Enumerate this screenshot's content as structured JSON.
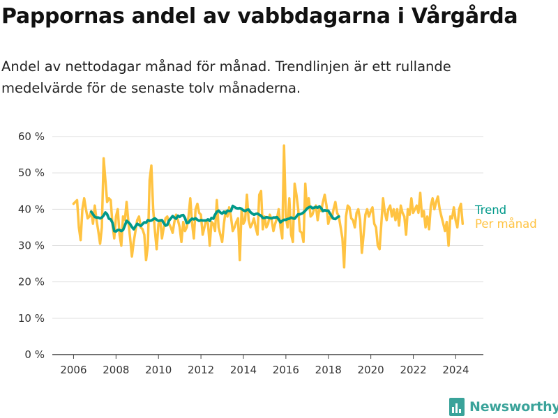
{
  "title": "Pappornas andel av vabbdagarna i Vårgårda",
  "subtitle": "Andel av nettodagar månad för månad. Trendlinjen är ett rullande medelvärde för de senaste tolv månaderna.",
  "brand": {
    "name": "Newsworthy",
    "icon": "newsworthy-logo-icon"
  },
  "chart_data": {
    "type": "line",
    "title": "Pappornas andel av vabbdagarna i Vårgårda",
    "xlabel": "",
    "ylabel": "",
    "x_ticks": [
      "2006",
      "2008",
      "2010",
      "2012",
      "2014",
      "2016",
      "2018",
      "2020",
      "2022",
      "2024"
    ],
    "y_ticks": [
      "0 %",
      "10 %",
      "20 %",
      "30 %",
      "40 %",
      "50 %",
      "60 %"
    ],
    "xlim": [
      2005.0,
      2025.3
    ],
    "ylim": [
      0,
      60
    ],
    "grid": "horizontal",
    "legend": "right-end-labels",
    "colors": {
      "trend": "#00998a",
      "monthly": "#ffc342"
    },
    "series": [
      {
        "name": "Trend",
        "start": 2006.833,
        "step": 0.0833,
        "values": [
          39.3,
          38.6,
          37.9,
          37.7,
          37.7,
          37.5,
          37.7,
          38.3,
          39.1,
          38.6,
          37.4,
          37.2,
          36.3,
          34.0,
          33.9,
          34.3,
          34.3,
          34.0,
          34.3,
          35.5,
          36.8,
          36.4,
          35.9,
          35.1,
          34.5,
          35.3,
          36.0,
          35.7,
          35.4,
          35.9,
          36.4,
          36.3,
          37.0,
          36.8,
          36.9,
          37.2,
          37.5,
          37.1,
          36.8,
          36.9,
          37.0,
          36.2,
          35.5,
          35.7,
          36.9,
          37.5,
          38.1,
          37.7,
          37.4,
          38.2,
          37.9,
          38.3,
          38.4,
          37.6,
          36.2,
          36.3,
          37.0,
          37.4,
          37.2,
          37.5,
          37.1,
          36.8,
          37.0,
          36.9,
          36.9,
          36.9,
          37.2,
          36.8,
          37.6,
          37.4,
          38.5,
          39.3,
          39.6,
          39.1,
          38.8,
          39.3,
          38.9,
          39.6,
          39.5,
          39.5,
          40.9,
          40.6,
          40.3,
          40.2,
          40.3,
          40.1,
          39.7,
          39.5,
          39.8,
          39.9,
          39.2,
          38.8,
          38.5,
          38.7,
          38.8,
          38.5,
          38.2,
          37.6,
          37.6,
          37.8,
          37.7,
          37.6,
          37.5,
          37.7,
          37.7,
          37.8,
          37.2,
          36.4,
          36.8,
          37.1,
          37.1,
          37.3,
          37.4,
          37.7,
          37.5,
          37.4,
          38.0,
          38.6,
          38.6,
          38.8,
          39.1,
          39.6,
          40.2,
          40.5,
          40.7,
          40.3,
          40.4,
          40.6,
          40.4,
          40.8,
          40.3,
          39.5,
          39.7,
          39.6,
          39.6,
          38.8,
          38.0,
          37.4,
          37.3,
          37.7,
          38.0
        ]
      },
      {
        "name": "Per månad",
        "start": 2006.0,
        "step": 0.0833,
        "values": [
          41.5,
          42.0,
          42.5,
          35.0,
          31.5,
          40.0,
          43.0,
          40.0,
          37.5,
          38.0,
          39.5,
          36.0,
          41.0,
          37.0,
          34.0,
          30.5,
          35.0,
          54.0,
          48.0,
          42.0,
          43.0,
          42.5,
          36.0,
          32.0,
          38.0,
          40.0,
          33.0,
          30.0,
          38.0,
          37.0,
          42.0,
          36.5,
          32.0,
          27.0,
          31.0,
          34.0,
          37.0,
          38.0,
          35.0,
          34.5,
          33.0,
          26.0,
          30.0,
          48.0,
          52.0,
          40.0,
          34.0,
          29.0,
          36.0,
          37.0,
          32.0,
          35.0,
          37.5,
          38.0,
          36.0,
          35.0,
          33.5,
          36.5,
          38.5,
          37.0,
          35.0,
          31.0,
          36.5,
          34.0,
          35.0,
          38.0,
          43.0,
          36.0,
          32.0,
          40.0,
          41.5,
          39.0,
          38.5,
          33.0,
          35.0,
          37.0,
          36.0,
          30.0,
          36.5,
          36.0,
          34.0,
          42.5,
          35.0,
          33.0,
          31.0,
          36.0,
          39.5,
          38.0,
          40.5,
          38.0,
          34.0,
          35.0,
          36.5,
          37.5,
          26.0,
          40.0,
          36.0,
          37.0,
          44.0,
          37.0,
          35.0,
          36.0,
          37.5,
          35.0,
          33.0,
          44.0,
          45.0,
          34.5,
          38.0,
          35.0,
          36.0,
          38.5,
          37.0,
          34.0,
          36.0,
          37.5,
          40.0,
          35.0,
          32.0,
          57.5,
          38.0,
          35.0,
          43.0,
          33.0,
          31.0,
          47.0,
          44.0,
          40.0,
          34.0,
          33.5,
          31.0,
          47.0,
          40.0,
          43.0,
          38.0,
          38.5,
          40.0,
          41.0,
          37.0,
          40.0,
          39.5,
          42.0,
          44.0,
          41.0,
          36.0,
          38.0,
          37.5,
          40.0,
          42.0,
          39.0,
          38.0,
          35.0,
          32.0,
          24.0,
          38.0,
          41.0,
          40.5,
          37.5,
          37.0,
          35.0,
          39.0,
          40.0,
          37.0,
          28.0,
          33.0,
          38.5,
          40.0,
          38.0,
          39.5,
          40.5,
          36.0,
          35.0,
          30.0,
          29.0,
          36.0,
          43.0,
          39.0,
          37.0,
          40.0,
          41.0,
          38.0,
          40.0,
          37.0,
          40.0,
          35.5,
          41.0,
          39.0,
          38.0,
          33.0,
          40.0,
          38.5,
          43.0,
          39.0,
          40.0,
          41.0,
          39.0,
          44.5,
          38.0,
          39.5,
          35.0,
          38.0,
          34.5,
          41.0,
          43.0,
          40.0,
          42.0,
          43.5,
          40.0,
          38.0,
          36.0,
          34.0,
          36.5,
          30.0,
          38.0,
          37.5,
          40.5,
          37.0,
          35.0,
          40.0,
          41.5,
          36.0
        ]
      }
    ]
  }
}
